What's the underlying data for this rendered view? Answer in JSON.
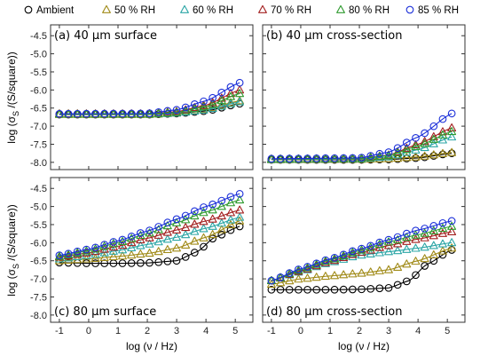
{
  "legend": [
    {
      "name": "Ambient",
      "marker": "circle",
      "color": "#000000"
    },
    {
      "name": "50 % RH",
      "marker": "triangle",
      "color": "#a08a17"
    },
    {
      "name": "60 % RH",
      "marker": "triangle",
      "color": "#2aa5a5"
    },
    {
      "name": "70 % RH",
      "marker": "triangle",
      "color": "#a31f1f"
    },
    {
      "name": "80 % RH",
      "marker": "triangle",
      "color": "#2e9a2e"
    },
    {
      "name": "85 % RH",
      "marker": "circle",
      "color": "#1b2fd9"
    }
  ],
  "ylabel": "log (σ_S /(S/square))",
  "xlabel": "log (ν / Hz)",
  "chart_data": [
    {
      "type": "scatter",
      "title": "(a) 40 μm surface",
      "xlim": [
        -1.3,
        5.6
      ],
      "ylim": [
        -8.2,
        -4.2
      ],
      "xticks": [
        -1,
        0,
        1,
        2,
        3,
        4,
        5
      ],
      "yticks": [
        -8.0,
        -7.5,
        -7.0,
        -6.5,
        -6.0,
        -5.5,
        -5.0,
        -4.5
      ],
      "xtick_labels_visible": false,
      "series": [
        {
          "name": "Ambient",
          "anchors": [
            [
              -1,
              -6.68
            ],
            [
              2.0,
              -6.68
            ],
            [
              3.0,
              -6.65
            ],
            [
              4.0,
              -6.58
            ],
            [
              5.15,
              -6.38
            ]
          ]
        },
        {
          "name": "50 % RH",
          "anchors": [
            [
              -1,
              -6.68
            ],
            [
              2.0,
              -6.68
            ],
            [
              3.0,
              -6.64
            ],
            [
              4.0,
              -6.53
            ],
            [
              5.15,
              -6.3
            ]
          ]
        },
        {
          "name": "60 % RH",
          "anchors": [
            [
              -1,
              -6.67
            ],
            [
              2.0,
              -6.67
            ],
            [
              3.0,
              -6.64
            ],
            [
              4.0,
              -6.55
            ],
            [
              5.15,
              -6.33
            ]
          ]
        },
        {
          "name": "70 % RH",
          "anchors": [
            [
              -1,
              -6.66
            ],
            [
              2.0,
              -6.66
            ],
            [
              3.0,
              -6.6
            ],
            [
              4.0,
              -6.42
            ],
            [
              5.15,
              -6.0
            ]
          ]
        },
        {
          "name": "80 % RH",
          "anchors": [
            [
              -1,
              -6.67
            ],
            [
              2.0,
              -6.67
            ],
            [
              3.0,
              -6.62
            ],
            [
              4.0,
              -6.46
            ],
            [
              5.15,
              -6.1
            ]
          ]
        },
        {
          "name": "85 % RH",
          "anchors": [
            [
              -1,
              -6.66
            ],
            [
              2.0,
              -6.65
            ],
            [
              3.0,
              -6.55
            ],
            [
              4.0,
              -6.3
            ],
            [
              5.15,
              -5.8
            ]
          ]
        }
      ]
    },
    {
      "type": "scatter",
      "title": "(b) 40 μm cross-section",
      "xlim": [
        -1.3,
        5.6
      ],
      "ylim": [
        -8.2,
        -4.2
      ],
      "xticks": [
        -1,
        0,
        1,
        2,
        3,
        4,
        5
      ],
      "yticks": [
        -8.0,
        -7.5,
        -7.0,
        -6.5,
        -6.0,
        -5.5,
        -5.0,
        -4.5
      ],
      "xtick_labels_visible": false,
      "ytick_labels_visible": false,
      "series": [
        {
          "name": "Ambient",
          "anchors": [
            [
              -1,
              -7.93
            ],
            [
              2.0,
              -7.93
            ],
            [
              3.0,
              -7.92
            ],
            [
              4.0,
              -7.88
            ],
            [
              5.15,
              -7.75
            ]
          ]
        },
        {
          "name": "50 % RH",
          "anchors": [
            [
              -1,
              -7.93
            ],
            [
              2.0,
              -7.92
            ],
            [
              3.0,
              -7.9
            ],
            [
              4.0,
              -7.85
            ],
            [
              5.15,
              -7.73
            ]
          ]
        },
        {
          "name": "60 % RH",
          "anchors": [
            [
              -1,
              -7.92
            ],
            [
              2.0,
              -7.91
            ],
            [
              3.0,
              -7.85
            ],
            [
              4.0,
              -7.65
            ],
            [
              5.15,
              -7.3
            ]
          ]
        },
        {
          "name": "70 % RH",
          "anchors": [
            [
              -1,
              -7.91
            ],
            [
              2.0,
              -7.9
            ],
            [
              3.0,
              -7.8
            ],
            [
              4.0,
              -7.5
            ],
            [
              5.15,
              -7.05
            ]
          ]
        },
        {
          "name": "80 % RH",
          "anchors": [
            [
              -1,
              -7.91
            ],
            [
              2.0,
              -7.9
            ],
            [
              3.0,
              -7.81
            ],
            [
              4.0,
              -7.55
            ],
            [
              5.15,
              -7.15
            ]
          ]
        },
        {
          "name": "85 % RH",
          "anchors": [
            [
              -1,
              -7.9
            ],
            [
              2.0,
              -7.88
            ],
            [
              3.0,
              -7.72
            ],
            [
              4.0,
              -7.3
            ],
            [
              5.15,
              -6.65
            ]
          ]
        }
      ]
    },
    {
      "type": "scatter",
      "title": "(c) 80 μm surface",
      "xlim": [
        -1.3,
        5.6
      ],
      "ylim": [
        -8.2,
        -4.2
      ],
      "xticks": [
        -1,
        0,
        1,
        2,
        3,
        4,
        5
      ],
      "yticks": [
        -8.0,
        -7.5,
        -7.0,
        -6.5,
        -6.0,
        -5.5,
        -5.0,
        -4.5
      ],
      "series": [
        {
          "name": "Ambient",
          "anchors": [
            [
              -1,
              -6.55
            ],
            [
              0.0,
              -6.57
            ],
            [
              1.0,
              -6.57
            ],
            [
              2.0,
              -6.56
            ],
            [
              3.0,
              -6.5
            ],
            [
              3.7,
              -6.25
            ],
            [
              4.3,
              -5.85
            ],
            [
              5.15,
              -5.55
            ]
          ]
        },
        {
          "name": "50 % RH",
          "anchors": [
            [
              -1,
              -6.5
            ],
            [
              0.0,
              -6.45
            ],
            [
              1.0,
              -6.38
            ],
            [
              2.0,
              -6.3
            ],
            [
              3.0,
              -6.15
            ],
            [
              4.0,
              -5.85
            ],
            [
              5.15,
              -5.4
            ]
          ]
        },
        {
          "name": "60 % RH",
          "anchors": [
            [
              -1,
              -6.45
            ],
            [
              0.0,
              -6.35
            ],
            [
              1.0,
              -6.22
            ],
            [
              2.0,
              -6.05
            ],
            [
              3.0,
              -5.85
            ],
            [
              4.0,
              -5.6
            ],
            [
              5.15,
              -5.3
            ]
          ]
        },
        {
          "name": "70 % RH",
          "anchors": [
            [
              -1,
              -6.4
            ],
            [
              0.0,
              -6.28
            ],
            [
              1.0,
              -6.1
            ],
            [
              2.0,
              -5.88
            ],
            [
              3.0,
              -5.65
            ],
            [
              4.0,
              -5.4
            ],
            [
              5.15,
              -5.1
            ]
          ]
        },
        {
          "name": "80 % RH",
          "anchors": [
            [
              -1,
              -6.38
            ],
            [
              0.0,
              -6.22
            ],
            [
              1.0,
              -6.0
            ],
            [
              2.0,
              -5.75
            ],
            [
              3.0,
              -5.45
            ],
            [
              4.0,
              -5.15
            ],
            [
              5.15,
              -4.82
            ]
          ]
        },
        {
          "name": "85 % RH",
          "anchors": [
            [
              -1,
              -6.35
            ],
            [
              0.0,
              -6.18
            ],
            [
              1.0,
              -5.95
            ],
            [
              2.0,
              -5.68
            ],
            [
              3.0,
              -5.35
            ],
            [
              4.0,
              -5.0
            ],
            [
              5.15,
              -4.65
            ]
          ]
        }
      ]
    },
    {
      "type": "scatter",
      "title": "(d) 80 μm cross-section",
      "xlim": [
        -1.3,
        5.6
      ],
      "ylim": [
        -8.2,
        -4.2
      ],
      "xticks": [
        -1,
        0,
        1,
        2,
        3,
        4,
        5
      ],
      "yticks": [
        -8.0,
        -7.5,
        -7.0,
        -6.5,
        -6.0,
        -5.5,
        -5.0,
        -4.5
      ],
      "ytick_labels_visible": false,
      "series": [
        {
          "name": "Ambient",
          "anchors": [
            [
              -1,
              -7.3
            ],
            [
              0.0,
              -7.3
            ],
            [
              1.0,
              -7.3
            ],
            [
              2.0,
              -7.29
            ],
            [
              3.0,
              -7.25
            ],
            [
              3.7,
              -7.05
            ],
            [
              4.3,
              -6.6
            ],
            [
              5.15,
              -6.2
            ]
          ]
        },
        {
          "name": "50 % RH",
          "anchors": [
            [
              -1,
              -7.15
            ],
            [
              0.0,
              -7.0
            ],
            [
              1.0,
              -6.92
            ],
            [
              2.0,
              -6.85
            ],
            [
              3.0,
              -6.75
            ],
            [
              4.0,
              -6.5
            ],
            [
              5.15,
              -6.15
            ]
          ]
        },
        {
          "name": "60 % RH",
          "anchors": [
            [
              -1,
              -7.05
            ],
            [
              0.0,
              -6.8
            ],
            [
              1.0,
              -6.55
            ],
            [
              2.0,
              -6.35
            ],
            [
              3.0,
              -6.25
            ],
            [
              4.0,
              -6.15
            ],
            [
              5.15,
              -6.0
            ]
          ]
        },
        {
          "name": "70 % RH",
          "anchors": [
            [
              -1,
              -7.05
            ],
            [
              0.0,
              -6.78
            ],
            [
              1.0,
              -6.52
            ],
            [
              2.0,
              -6.28
            ],
            [
              3.0,
              -6.08
            ],
            [
              4.0,
              -5.9
            ],
            [
              5.15,
              -5.7
            ]
          ]
        },
        {
          "name": "80 % RH",
          "anchors": [
            [
              -1,
              -7.05
            ],
            [
              0.0,
              -6.75
            ],
            [
              1.0,
              -6.48
            ],
            [
              2.0,
              -6.22
            ],
            [
              3.0,
              -5.98
            ],
            [
              4.0,
              -5.78
            ],
            [
              5.15,
              -5.55
            ]
          ]
        },
        {
          "name": "85 % RH",
          "anchors": [
            [
              -1,
              -7.05
            ],
            [
              0.0,
              -6.72
            ],
            [
              1.0,
              -6.45
            ],
            [
              2.0,
              -6.18
            ],
            [
              3.0,
              -5.92
            ],
            [
              4.0,
              -5.65
            ],
            [
              5.15,
              -5.4
            ]
          ]
        }
      ]
    }
  ]
}
